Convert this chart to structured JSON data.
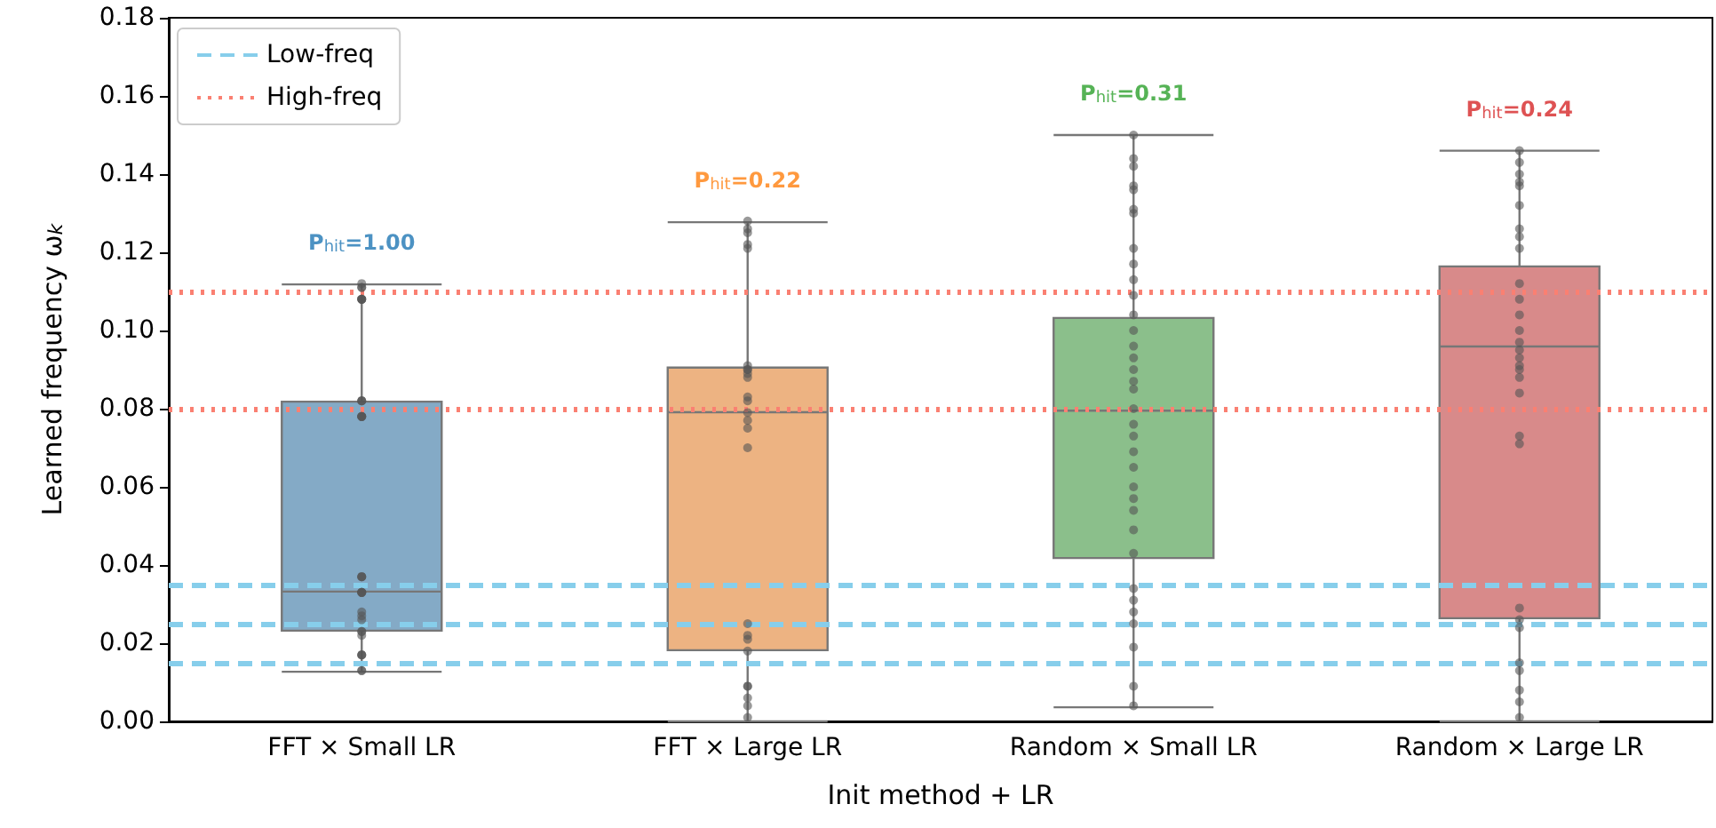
{
  "chart_data": {
    "type": "box",
    "xlabel": "Init method + LR",
    "ylabel": "Learned frequency ω$_{k}$",
    "categories": [
      "FFT × Small LR",
      "FFT × Large LR",
      "Random × Small LR",
      "Random × Large LR"
    ],
    "colors": [
      "#84aac6",
      "#edb382",
      "#8bbf8b",
      "#d88a8a"
    ],
    "boxes": [
      {
        "low": 0.0127,
        "q1": 0.0232,
        "median": 0.0332,
        "q3": 0.0818,
        "high": 0.1118
      },
      {
        "low": 0.0,
        "q1": 0.0182,
        "median": 0.0791,
        "q3": 0.0905,
        "high": 0.1277
      },
      {
        "low": 0.0036,
        "q1": 0.0418,
        "median": 0.0795,
        "q3": 0.1032,
        "high": 0.15
      },
      {
        "low": 0.0,
        "q1": 0.0264,
        "median": 0.0959,
        "q3": 0.1164,
        "high": 0.146
      }
    ],
    "series": [
      {
        "type": "scatter",
        "color": "#555555",
        "x": [
          "FFT × Small LR",
          "FFT × Small LR",
          "FFT × Small LR",
          "FFT × Small LR",
          "FFT × Small LR",
          "FFT × Small LR",
          "FFT × Small LR",
          "FFT × Small LR",
          "FFT × Small LR",
          "FFT × Small LR",
          "FFT × Small LR",
          "FFT × Small LR",
          "FFT × Small LR",
          "FFT × Small LR",
          "FFT × Small LR",
          "FFT × Small LR",
          "FFT × Small LR",
          "FFT × Small LR",
          "FFT × Small LR",
          "FFT × Small LR",
          "FFT × Small LR",
          "FFT × Small LR",
          "FFT × Small LR",
          "FFT × Small LR",
          "FFT × Small LR",
          "FFT × Small LR",
          "FFT × Small LR",
          "FFT × Small LR",
          "FFT × Small LR",
          "FFT × Small LR",
          "FFT × Small LR",
          "FFT × Small LR",
          "FFT × Large LR",
          "FFT × Large LR",
          "FFT × Large LR",
          "FFT × Large LR",
          "FFT × Large LR",
          "FFT × Large LR",
          "FFT × Large LR",
          "FFT × Large LR",
          "FFT × Large LR",
          "FFT × Large LR",
          "FFT × Large LR",
          "FFT × Large LR",
          "FFT × Large LR",
          "FFT × Large LR",
          "FFT × Large LR",
          "FFT × Large LR",
          "FFT × Large LR",
          "FFT × Large LR",
          "FFT × Large LR",
          "FFT × Large LR",
          "FFT × Large LR",
          "FFT × Large LR",
          "FFT × Large LR",
          "FFT × Large LR",
          "FFT × Large LR",
          "Random × Small LR",
          "Random × Small LR",
          "Random × Small LR",
          "Random × Small LR",
          "Random × Small LR",
          "Random × Small LR",
          "Random × Small LR",
          "Random × Small LR",
          "Random × Small LR",
          "Random × Small LR",
          "Random × Small LR",
          "Random × Small LR",
          "Random × Small LR",
          "Random × Small LR",
          "Random × Small LR",
          "Random × Small LR",
          "Random × Small LR",
          "Random × Small LR",
          "Random × Small LR",
          "Random × Small LR",
          "Random × Small LR",
          "Random × Small LR",
          "Random × Small LR",
          "Random × Small LR",
          "Random × Small LR",
          "Random × Small LR",
          "Random × Small LR",
          "Random × Small LR",
          "Random × Small LR",
          "Random × Small LR",
          "Random × Small LR",
          "Random × Small LR",
          "Random × Small LR",
          "Random × Small LR",
          "Random × Small LR",
          "Random × Large LR",
          "Random × Large LR",
          "Random × Large LR",
          "Random × Large LR",
          "Random × Large LR",
          "Random × Large LR",
          "Random × Large LR",
          "Random × Large LR",
          "Random × Large LR",
          "Random × Large LR",
          "Random × Large LR",
          "Random × Large LR",
          "Random × Large LR",
          "Random × Large LR",
          "Random × Large LR",
          "Random × Large LR",
          "Random × Large LR",
          "Random × Large LR",
          "Random × Large LR",
          "Random × Large LR",
          "Random × Large LR",
          "Random × Large LR",
          "Random × Large LR",
          "Random × Large LR",
          "Random × Large LR",
          "Random × Large LR",
          "Random × Large LR",
          "Random × Large LR",
          "Random × Large LR",
          "Random × Large LR"
        ],
        "values": [
          0.112,
          0.111,
          0.111,
          0.108,
          0.108,
          0.108,
          0.108,
          0.082,
          0.082,
          0.082,
          0.078,
          0.078,
          0.078,
          0.078,
          0.037,
          0.037,
          0.037,
          0.033,
          0.033,
          0.033,
          0.033,
          0.028,
          0.027,
          0.026,
          0.023,
          0.023,
          0.022,
          0.017,
          0.017,
          0.017,
          0.013,
          0.013,
          0.128,
          0.126,
          0.125,
          0.122,
          0.121,
          0.091,
          0.09,
          0.09,
          0.089,
          0.088,
          0.083,
          0.082,
          0.079,
          0.077,
          0.075,
          0.07,
          0.025,
          0.022,
          0.021,
          0.018,
          0.009,
          0.009,
          0.006,
          0.004,
          0.001,
          0.15,
          0.144,
          0.142,
          0.137,
          0.136,
          0.131,
          0.13,
          0.121,
          0.117,
          0.113,
          0.109,
          0.104,
          0.1,
          0.096,
          0.093,
          0.09,
          0.087,
          0.085,
          0.08,
          0.076,
          0.073,
          0.069,
          0.065,
          0.06,
          0.057,
          0.054,
          0.049,
          0.043,
          0.034,
          0.031,
          0.028,
          0.025,
          0.019,
          0.009,
          0.004,
          0.146,
          0.143,
          0.14,
          0.138,
          0.137,
          0.132,
          0.126,
          0.124,
          0.121,
          0.112,
          0.108,
          0.104,
          0.1,
          0.097,
          0.095,
          0.093,
          0.091,
          0.09,
          0.088,
          0.084,
          0.073,
          0.071,
          0.029,
          0.026,
          0.024,
          0.015,
          0.013,
          0.008,
          0.005,
          0.001
        ]
      }
    ],
    "ylim": [
      0,
      0.18
    ],
    "yticks": [
      {
        "value": 0,
        "label": "0.00"
      },
      {
        "value": 0.02,
        "label": "0.02"
      },
      {
        "value": 0.04,
        "label": "0.04"
      },
      {
        "value": 0.06,
        "label": "0.06"
      },
      {
        "value": 0.08,
        "label": "0.08"
      },
      {
        "value": 0.1,
        "label": "0.10"
      },
      {
        "value": 0.12,
        "label": "0.12"
      },
      {
        "value": 0.14,
        "label": "0.14"
      },
      {
        "value": 0.16,
        "label": "0.16"
      },
      {
        "value": 0.18,
        "label": "0.18"
      }
    ],
    "ref_lines": [
      {
        "axis": "y",
        "value": 0.015,
        "label": "Low-freq",
        "color": "#87ceeb",
        "line_style": "dashed"
      },
      {
        "axis": "y",
        "value": 0.025,
        "label": null,
        "color": "#87ceeb",
        "line_style": "dashed"
      },
      {
        "axis": "y",
        "value": 0.035,
        "label": null,
        "color": "#87ceeb",
        "line_style": "dashed"
      },
      {
        "axis": "y",
        "value": 0.08,
        "label": "High-freq",
        "color": "#fa8072",
        "line_style": "dotted"
      },
      {
        "axis": "y",
        "value": 0.11,
        "label": null,
        "color": "#fa8072",
        "line_style": "dotted"
      }
    ],
    "annotations": [
      "P$_{hit}$=1.00",
      "P$_{hit}$=0.22",
      "P$_{hit}$=0.31",
      "P$_{hit}$=0.24"
    ],
    "legend": "top left",
    "grid": false
  }
}
